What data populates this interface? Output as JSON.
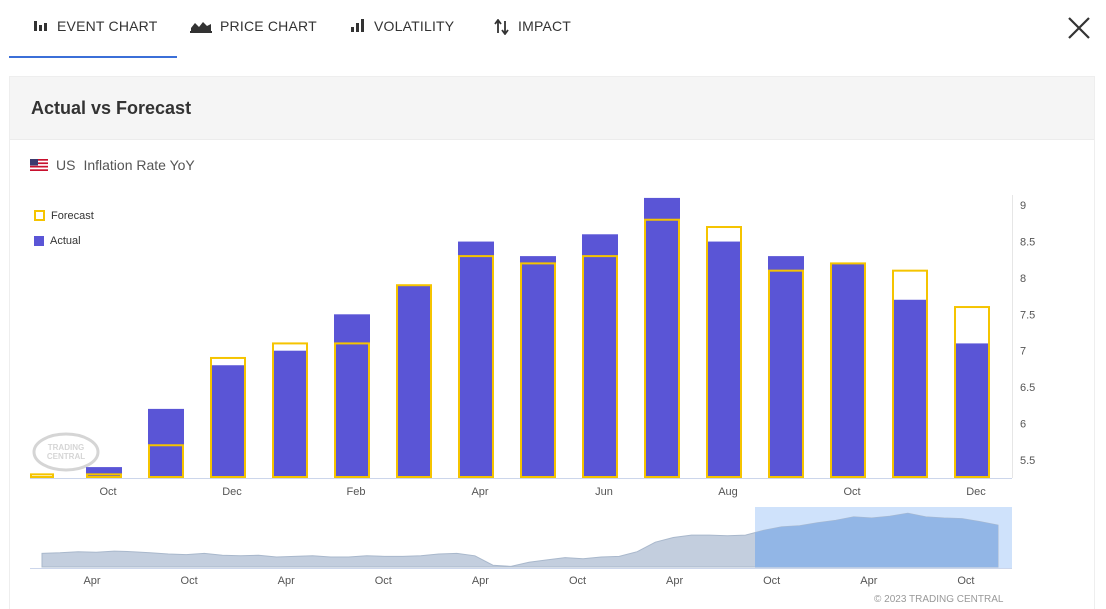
{
  "tabs": [
    {
      "label": "EVENT CHART",
      "icon": "bar-chart-icon",
      "active": true
    },
    {
      "label": "PRICE CHART",
      "icon": "area-chart-icon",
      "active": false
    },
    {
      "label": "VOLATILITY",
      "icon": "volatility-icon",
      "active": false
    },
    {
      "label": "IMPACT",
      "icon": "up-down-arrows-icon",
      "active": false
    }
  ],
  "panel": {
    "title": "Actual vs Forecast"
  },
  "series": {
    "country": "US",
    "name": "Inflation Rate YoY",
    "flag_icon": "us-flag-icon"
  },
  "legend": {
    "forecast": "Forecast",
    "actual": "Actual"
  },
  "colors": {
    "actual": "#5a55d6",
    "forecast": "#f5c400",
    "accent": "#3b6fd8",
    "navigator_area": "#b8c5d8",
    "navigator_selection": "#cfe2fb"
  },
  "chart_data": [
    {
      "type": "bar",
      "title": "",
      "xlabel": "",
      "ylabel": "",
      "x_ticks": [
        "Oct",
        "Dec",
        "Feb",
        "Apr",
        "Jun",
        "Aug",
        "Oct",
        "Dec"
      ],
      "y_ticks": [
        "5.5",
        "6",
        "6.5",
        "7",
        "7.5",
        "8",
        "8.5",
        "9"
      ],
      "ylim": [
        5.25,
        9.25
      ],
      "grid": false,
      "legend_position": "top-left",
      "series": [
        {
          "name": "Actual",
          "values": [
            5.4,
            6.2,
            6.8,
            7.0,
            7.5,
            7.9,
            8.5,
            8.3,
            8.6,
            9.1,
            8.5,
            8.3,
            8.2,
            7.7,
            7.1
          ]
        },
        {
          "name": "Forecast",
          "values": [
            5.3,
            5.3,
            5.7,
            6.9,
            7.1,
            7.1,
            7.9,
            8.3,
            8.2,
            8.3,
            8.8,
            8.7,
            8.1,
            8.2,
            8.1,
            7.6
          ]
        }
      ]
    },
    {
      "type": "area",
      "x_ticks": [
        "Apr",
        "Oct",
        "Apr",
        "Oct",
        "Apr",
        "Oct",
        "Apr",
        "Oct",
        "Apr",
        "Oct"
      ],
      "values": [
        2.3,
        2.4,
        2.6,
        2.5,
        2.7,
        2.6,
        2.4,
        2.2,
        2.1,
        2.3,
        2.0,
        1.9,
        2.0,
        1.7,
        1.8,
        1.9,
        1.7,
        1.7,
        1.9,
        1.8,
        1.8,
        1.9,
        2.2,
        2.3,
        1.9,
        0.3,
        0.1,
        0.8,
        1.2,
        1.6,
        1.4,
        1.7,
        1.8,
        2.6,
        4.2,
        5.0,
        5.4,
        5.4,
        5.3,
        5.4,
        6.2,
        6.8,
        7.0,
        7.5,
        7.9,
        8.5,
        8.3,
        8.6,
        9.1,
        8.5,
        8.3,
        8.2,
        7.7,
        7.1
      ],
      "selection": "last 15 months"
    }
  ],
  "copyright": "© 2023 TRADING CENTRAL"
}
